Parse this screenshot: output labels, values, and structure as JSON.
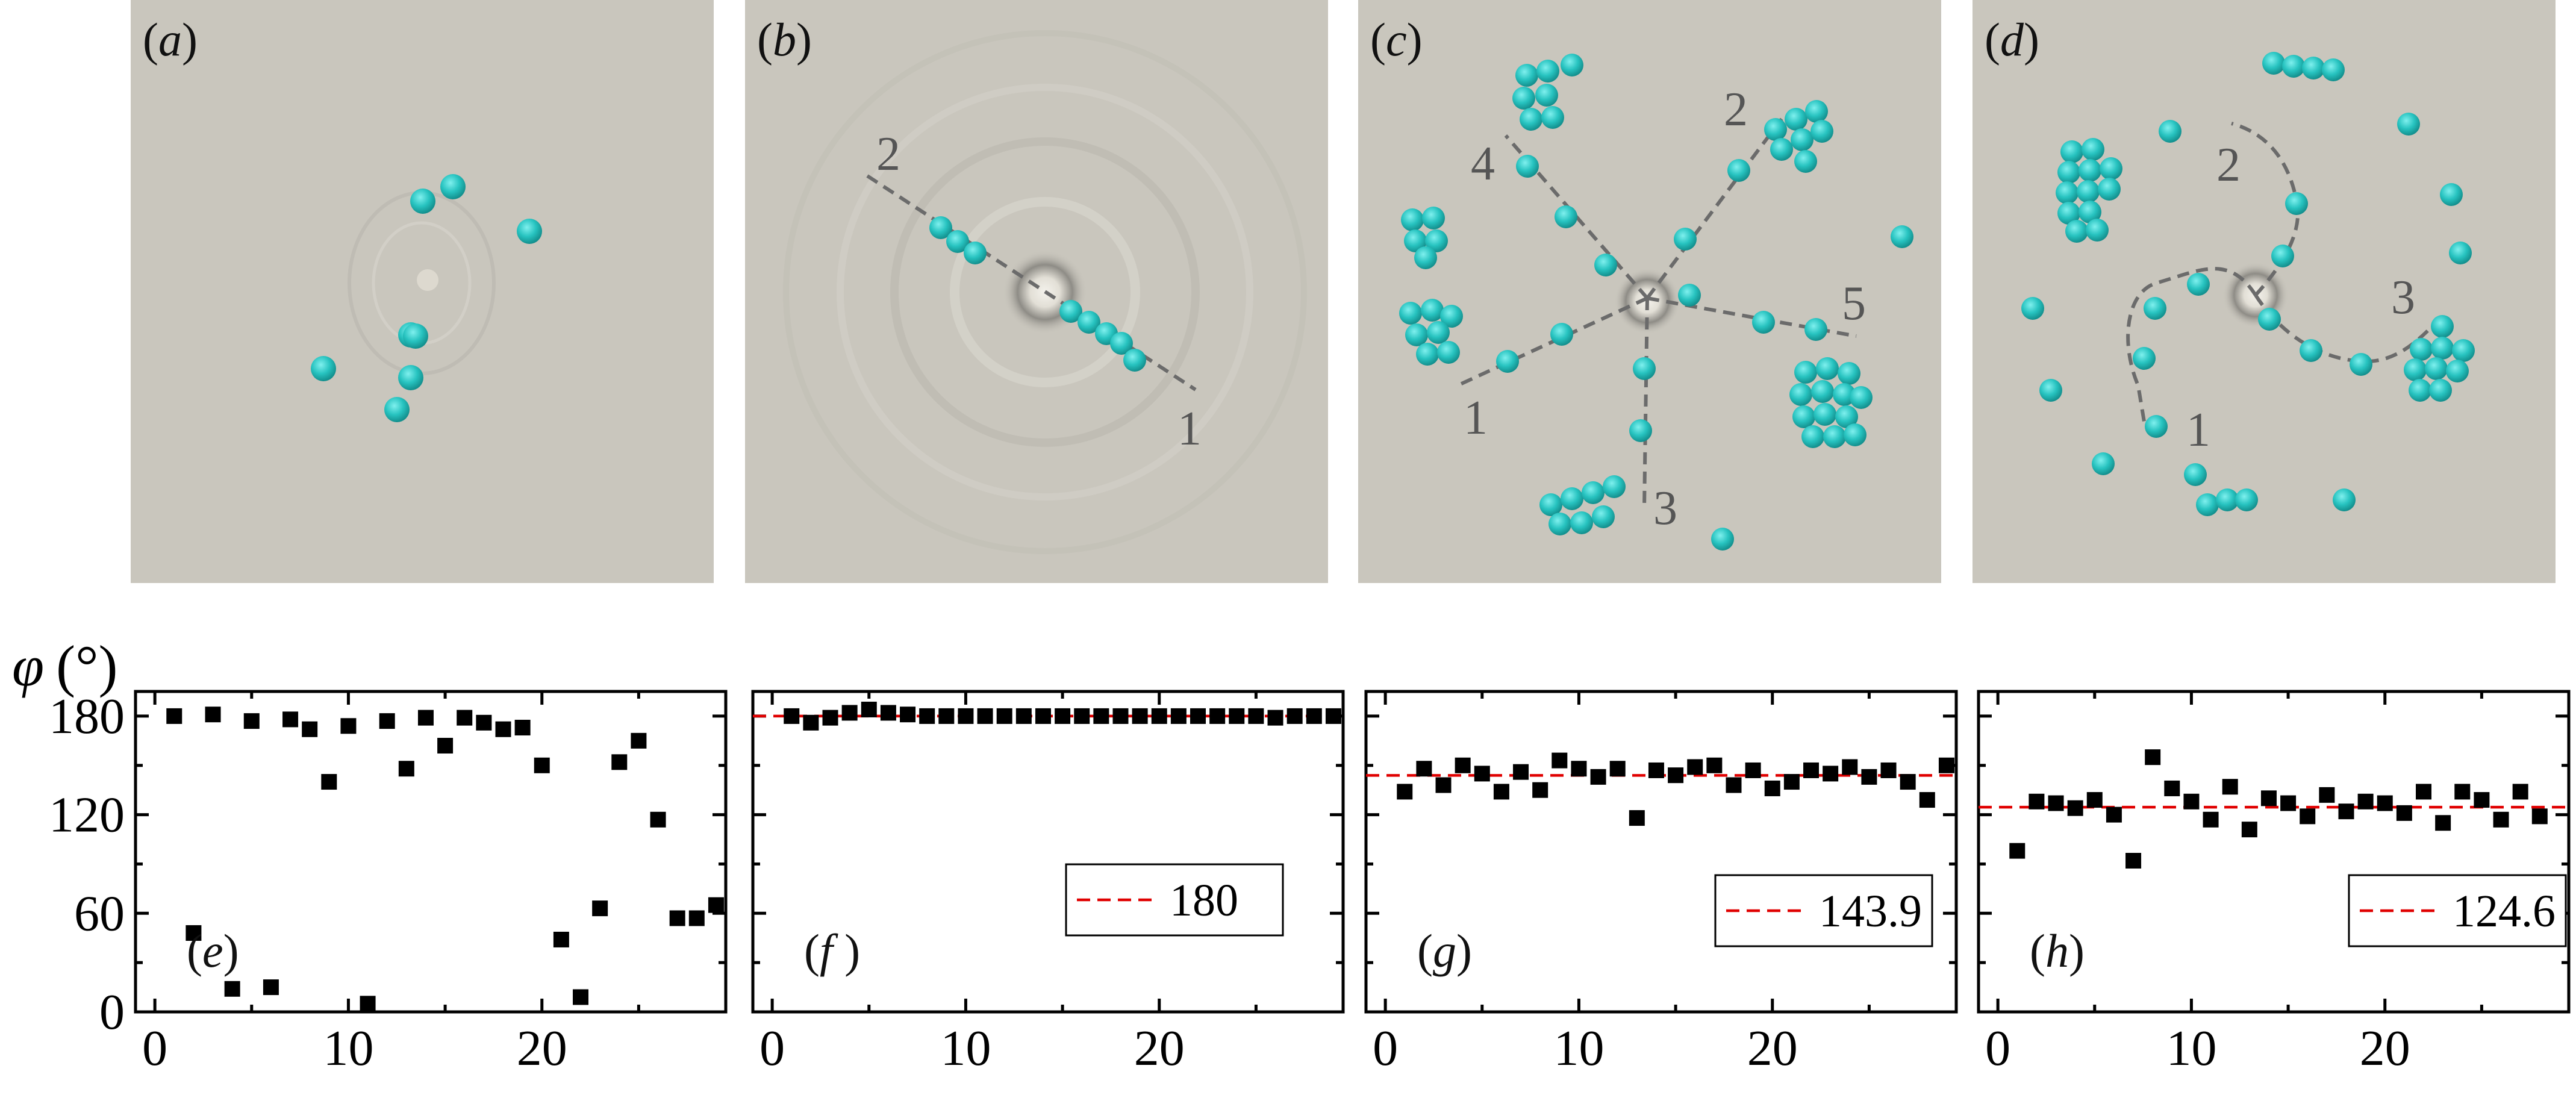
{
  "image_panels": [
    {
      "label": "(a)",
      "path_labels": []
    },
    {
      "label": "(b)",
      "path_labels": [
        "1",
        "2"
      ]
    },
    {
      "label": "(c)",
      "path_labels": [
        "1",
        "2",
        "3",
        "4",
        "5"
      ]
    },
    {
      "label": "(d)",
      "path_labels": [
        "1",
        "2",
        "3"
      ]
    }
  ],
  "colors": {
    "particle": "#2ec9c6",
    "background": "#c9c6bd",
    "reference_line": "#e00000",
    "marker": "#000000"
  },
  "chart_data": [
    {
      "type": "scatter",
      "panel_label": "(e)",
      "ylabel": "φ (°)",
      "xlabel": "",
      "xlim": [
        -1,
        29.5
      ],
      "ylim": [
        0,
        195
      ],
      "xticks": [
        0,
        10,
        20
      ],
      "yticks": [
        0,
        60,
        120,
        180
      ],
      "y": [
        180,
        48,
        181,
        14,
        177,
        15,
        178,
        172,
        140,
        174,
        5,
        177,
        148,
        179,
        162,
        179,
        176,
        172,
        173,
        150,
        44,
        9,
        63,
        152,
        165,
        117,
        57,
        57,
        65
      ],
      "reference": null
    },
    {
      "type": "scatter",
      "panel_label": "(f)",
      "xlabel": "",
      "xlim": [
        -1,
        29.5
      ],
      "ylim": [
        0,
        195
      ],
      "xticks": [
        0,
        10,
        20
      ],
      "yticks": [
        0,
        60,
        120,
        180
      ],
      "y": [
        180,
        176,
        179,
        182,
        184,
        182,
        181,
        180,
        180,
        180,
        180,
        180,
        180,
        180,
        180,
        180,
        180,
        180,
        180,
        180,
        180,
        180,
        180,
        180,
        180,
        179,
        180,
        180,
        180
      ],
      "reference": {
        "value": 180,
        "label": "180"
      }
    },
    {
      "type": "scatter",
      "panel_label": "(g)",
      "xlabel": "",
      "xlim": [
        -1,
        29.5
      ],
      "ylim": [
        0,
        195
      ],
      "xticks": [
        0,
        10,
        20
      ],
      "yticks": [
        0,
        60,
        120,
        180
      ],
      "y": [
        134,
        148,
        138,
        150,
        145,
        134,
        146,
        135,
        153,
        148,
        143,
        148,
        118,
        147,
        144,
        149,
        150,
        138,
        147,
        136,
        140,
        147,
        145,
        149,
        143,
        147,
        140,
        129,
        150
      ],
      "reference": {
        "value": 143.9,
        "label": "143.9"
      }
    },
    {
      "type": "scatter",
      "panel_label": "(h)",
      "xlabel": "",
      "xlim": [
        -1,
        29.5
      ],
      "ylim": [
        0,
        195
      ],
      "xticks": [
        0,
        10,
        20
      ],
      "yticks": [
        0,
        60,
        120,
        180
      ],
      "y": [
        98,
        128,
        127,
        124,
        129,
        120,
        92,
        155,
        136,
        128,
        117,
        137,
        111,
        130,
        127,
        119,
        132,
        122,
        128,
        127,
        121,
        134,
        115,
        134,
        129,
        117,
        134,
        119
      ],
      "reference": {
        "value": 124.6,
        "label": "124.6"
      }
    }
  ]
}
